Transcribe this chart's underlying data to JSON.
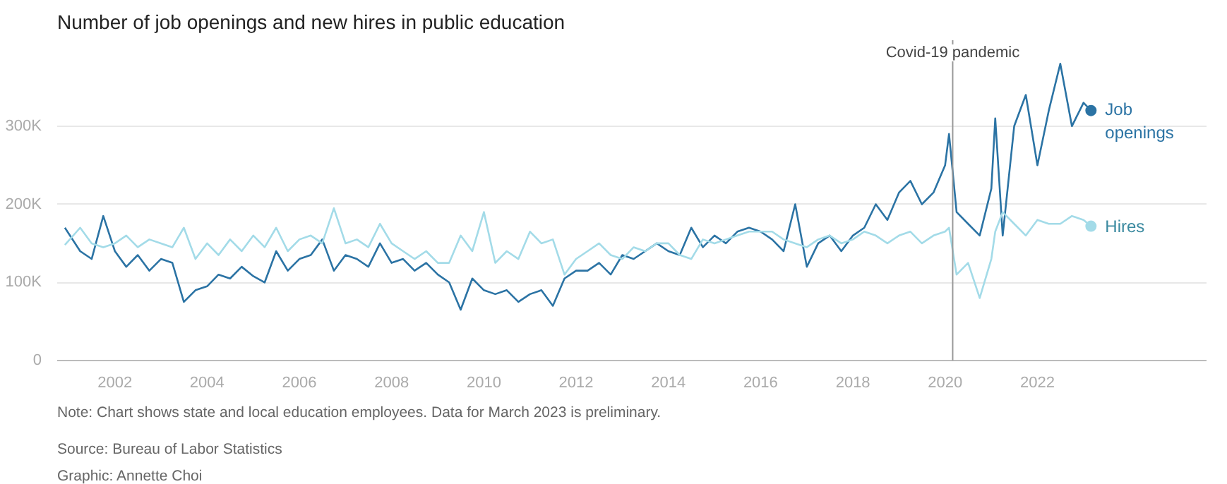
{
  "chart_data": {
    "type": "line",
    "title": "Number of job openings and new hires in public education",
    "x": [
      "2000-12",
      "2001-04",
      "2001-07",
      "2001-10",
      "2002-01",
      "2002-04",
      "2002-07",
      "2002-10",
      "2003-01",
      "2003-04",
      "2003-07",
      "2003-10",
      "2004-01",
      "2004-04",
      "2004-07",
      "2004-10",
      "2005-01",
      "2005-04",
      "2005-07",
      "2005-10",
      "2006-01",
      "2006-04",
      "2006-07",
      "2006-10",
      "2007-01",
      "2007-04",
      "2007-07",
      "2007-10",
      "2008-01",
      "2008-04",
      "2008-07",
      "2008-10",
      "2009-01",
      "2009-04",
      "2009-07",
      "2009-10",
      "2010-01",
      "2010-04",
      "2010-07",
      "2010-10",
      "2011-01",
      "2011-04",
      "2011-07",
      "2011-10",
      "2012-01",
      "2012-04",
      "2012-07",
      "2012-10",
      "2013-01",
      "2013-04",
      "2013-07",
      "2013-10",
      "2014-01",
      "2014-04",
      "2014-07",
      "2014-10",
      "2015-01",
      "2015-04",
      "2015-07",
      "2015-10",
      "2016-01",
      "2016-04",
      "2016-07",
      "2016-10",
      "2017-01",
      "2017-04",
      "2017-07",
      "2017-10",
      "2018-01",
      "2018-04",
      "2018-07",
      "2018-10",
      "2019-01",
      "2019-04",
      "2019-07",
      "2019-10",
      "2020-01",
      "2020-02",
      "2020-04",
      "2020-07",
      "2020-10",
      "2021-01",
      "2021-02",
      "2021-04",
      "2021-07",
      "2021-10",
      "2022-01",
      "2022-04",
      "2022-07",
      "2022-10",
      "2023-01",
      "2023-03"
    ],
    "series": [
      {
        "name": "Job openings",
        "color": "#2b73a4",
        "values": [
          170000,
          140000,
          130000,
          185000,
          140000,
          120000,
          135000,
          115000,
          130000,
          125000,
          75000,
          90000,
          95000,
          110000,
          105000,
          120000,
          108000,
          100000,
          140000,
          115000,
          130000,
          135000,
          155000,
          115000,
          135000,
          130000,
          120000,
          150000,
          125000,
          130000,
          115000,
          125000,
          110000,
          100000,
          65000,
          105000,
          90000,
          85000,
          90000,
          75000,
          85000,
          90000,
          70000,
          105000,
          115000,
          115000,
          125000,
          110000,
          135000,
          130000,
          140000,
          150000,
          140000,
          135000,
          170000,
          145000,
          160000,
          150000,
          165000,
          170000,
          165000,
          155000,
          140000,
          200000,
          120000,
          150000,
          160000,
          140000,
          160000,
          170000,
          200000,
          180000,
          215000,
          230000,
          200000,
          215000,
          250000,
          290000,
          190000,
          175000,
          160000,
          220000,
          310000,
          160000,
          300000,
          340000,
          250000,
          320000,
          380000,
          300000,
          330000,
          320000
        ]
      },
      {
        "name": "Hires",
        "color": "#a3dbe8",
        "values": [
          148000,
          170000,
          150000,
          145000,
          150000,
          160000,
          145000,
          155000,
          150000,
          145000,
          170000,
          130000,
          150000,
          135000,
          155000,
          140000,
          160000,
          145000,
          170000,
          140000,
          155000,
          160000,
          150000,
          195000,
          150000,
          155000,
          145000,
          175000,
          150000,
          140000,
          130000,
          140000,
          125000,
          125000,
          160000,
          140000,
          190000,
          125000,
          140000,
          130000,
          165000,
          150000,
          155000,
          110000,
          130000,
          140000,
          150000,
          135000,
          130000,
          145000,
          140000,
          150000,
          150000,
          135000,
          130000,
          155000,
          150000,
          155000,
          160000,
          165000,
          165000,
          165000,
          155000,
          150000,
          145000,
          155000,
          160000,
          150000,
          155000,
          165000,
          160000,
          150000,
          160000,
          165000,
          150000,
          160000,
          165000,
          170000,
          110000,
          125000,
          80000,
          130000,
          165000,
          190000,
          175000,
          160000,
          180000,
          175000,
          175000,
          185000,
          180000,
          172000
        ]
      }
    ],
    "xlim": [
      "2000-10",
      "2025-09"
    ],
    "xticks": [
      "2002",
      "2004",
      "2006",
      "2008",
      "2010",
      "2012",
      "2014",
      "2016",
      "2018",
      "2020",
      "2022"
    ],
    "ylim": [
      0,
      410000
    ],
    "yticks": [
      {
        "value": 0,
        "label": "0"
      },
      {
        "value": 100000,
        "label": "100K"
      },
      {
        "value": 200000,
        "label": "200K"
      },
      {
        "value": 300000,
        "label": "300K"
      }
    ],
    "grid": "y",
    "legend": false,
    "line_style": "solid",
    "ref_lines": [
      {
        "axis": "x",
        "value": "2020-03",
        "label": "Covid-19 pandemic",
        "color": "#999999"
      }
    ],
    "annotations": [
      "Note: Chart shows state and local education employees. Data for March 2023 is preliminary.",
      "Source: Bureau of Labor Statistics",
      "Graphic: Annette Choi"
    ]
  }
}
